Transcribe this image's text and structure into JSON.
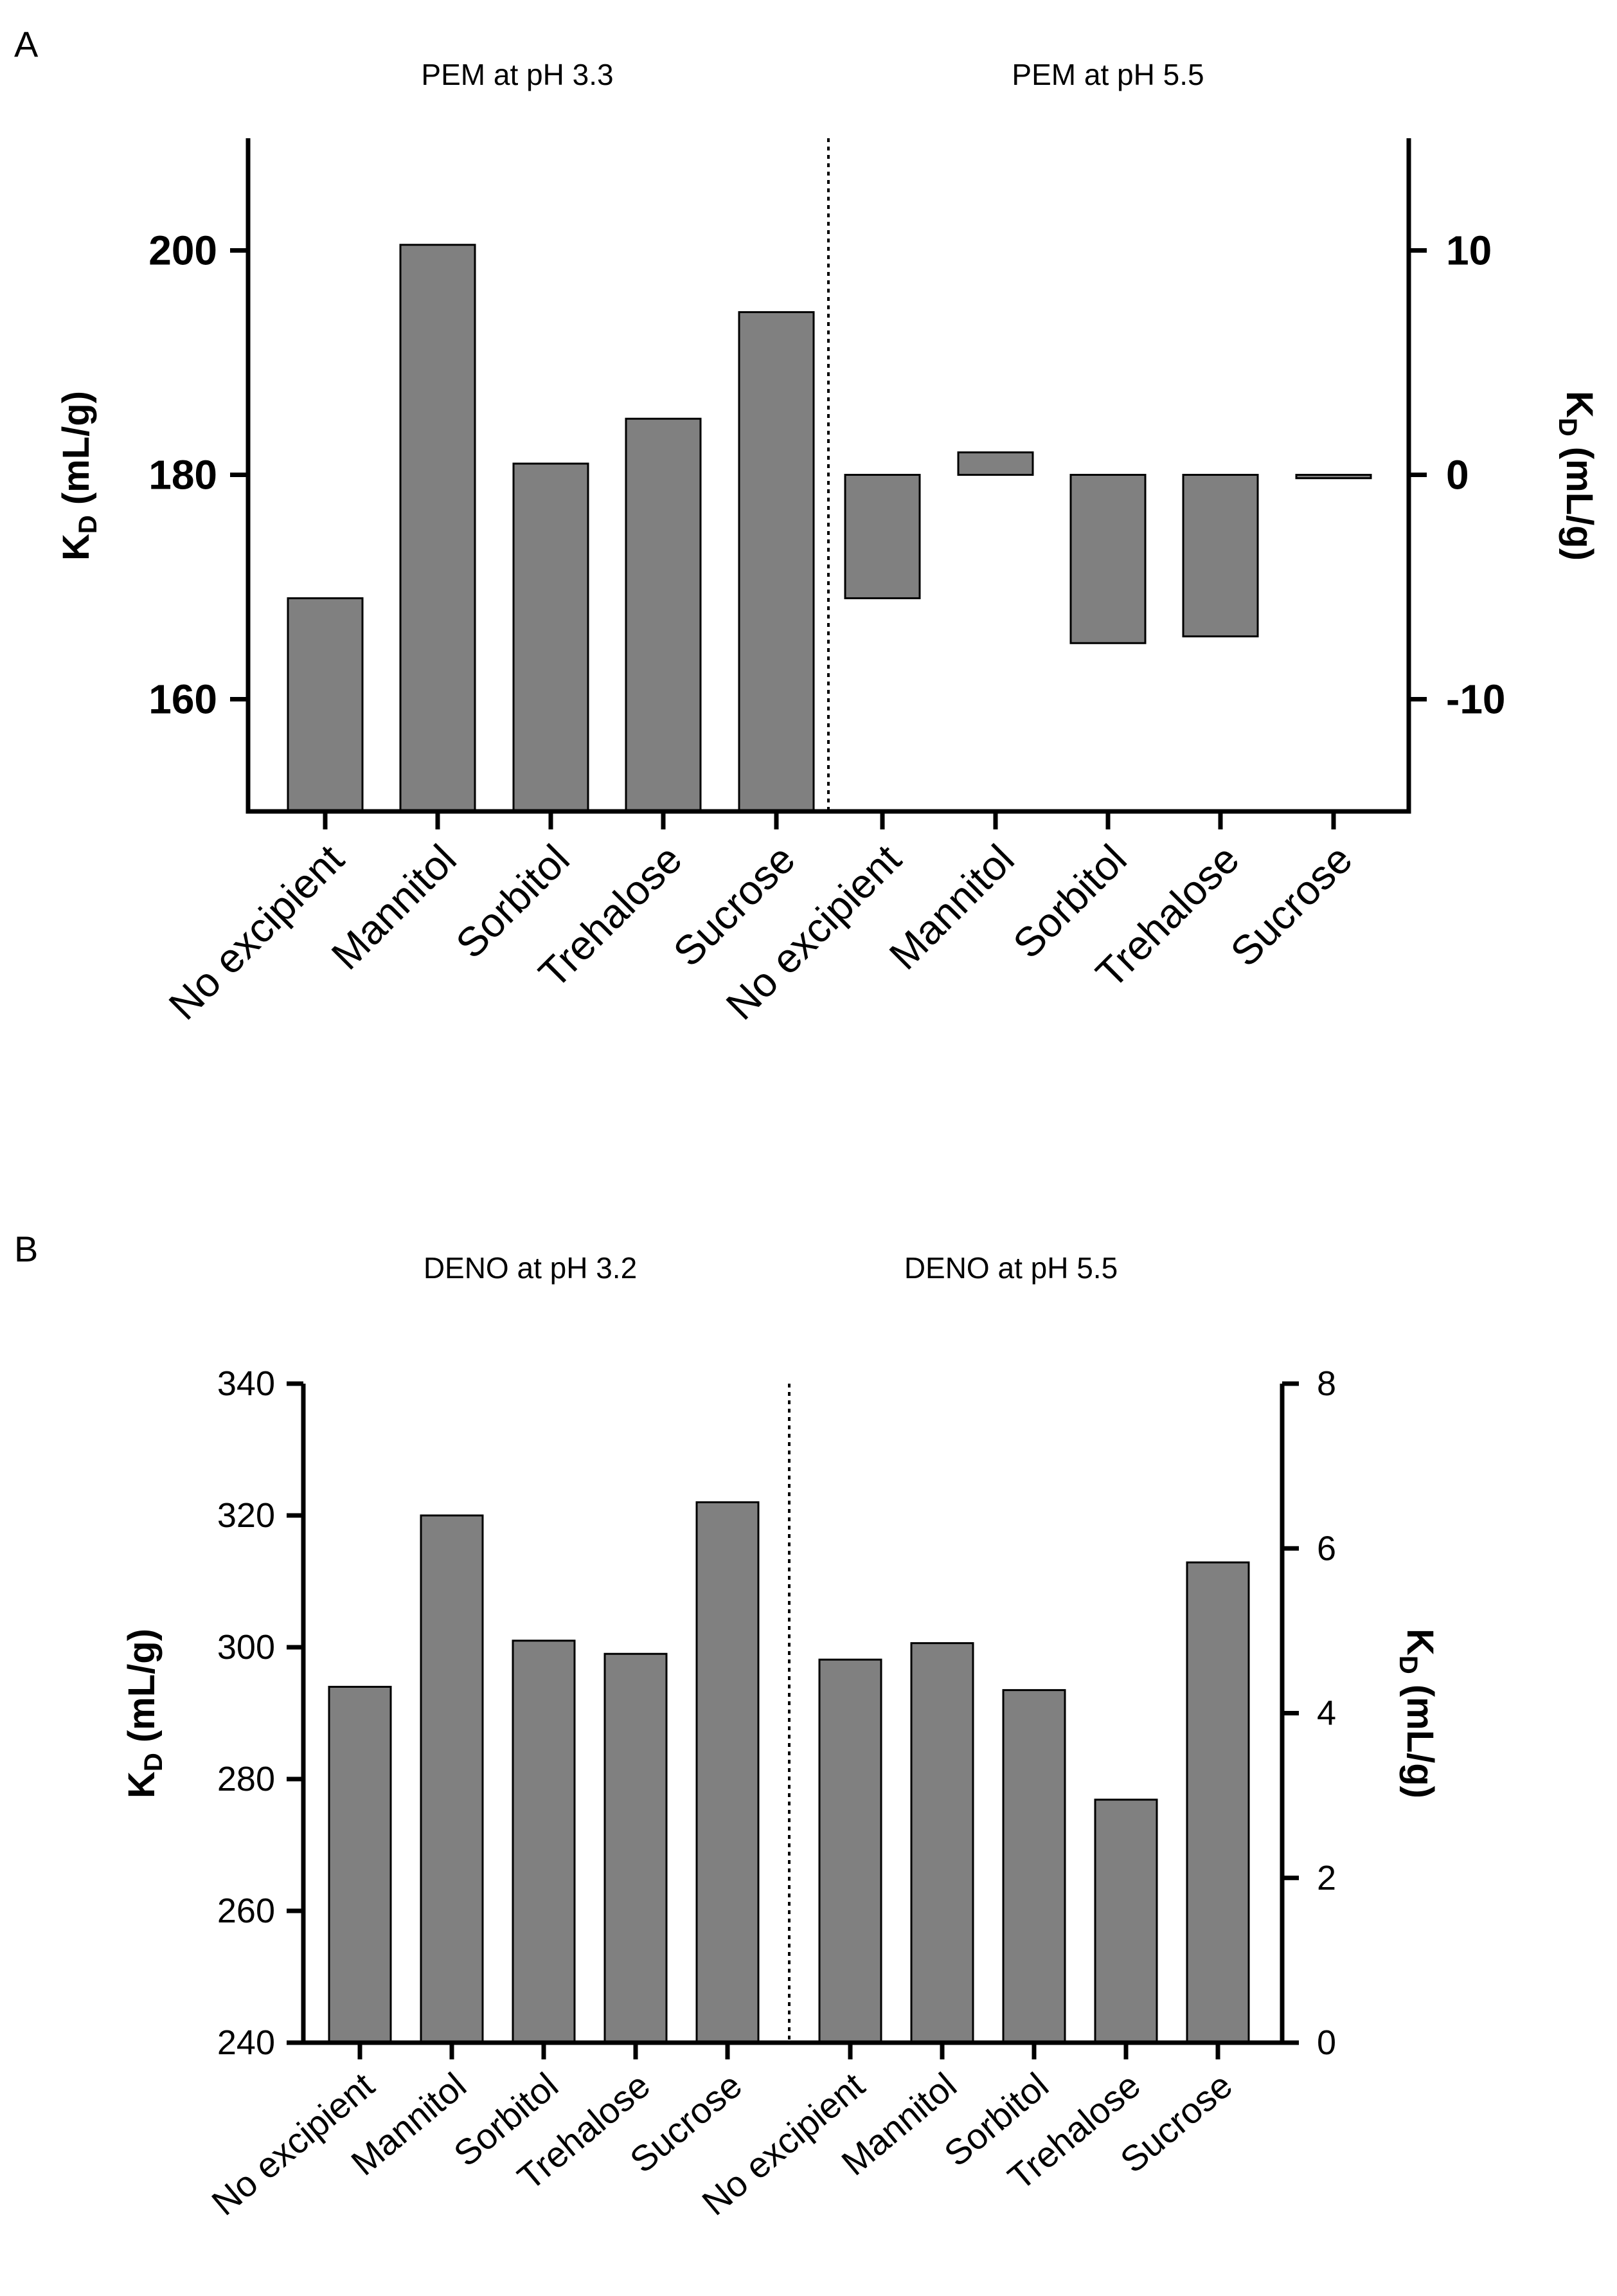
{
  "chart_data": [
    {
      "panel": "A",
      "type": "bar",
      "colors": {
        "bar": "#808080",
        "axis": "#000000"
      },
      "left": {
        "title": "PEM at pH 3.3",
        "categories": [
          "No excipient",
          "Mannitol",
          "Sorbitol",
          "Trehalose",
          "Sucrose"
        ],
        "values": [
          169,
          200.5,
          181,
          185,
          194.5
        ],
        "ylabel": "K",
        "ylabel_sub": "D",
        "ylabel_unit": " (mL/g)",
        "ylim": [
          150,
          210
        ],
        "yticks": [
          160,
          180,
          200
        ]
      },
      "right": {
        "title": "PEM at pH 5.5",
        "categories": [
          "No excipient",
          "Mannitol",
          "Sorbitol",
          "Trehalose",
          "Sucrose"
        ],
        "values": [
          -5.5,
          1.0,
          -7.5,
          -7.2,
          -0.15
        ],
        "ylabel": "K",
        "ylabel_sub": "D",
        "ylabel_unit": " (mL/g)",
        "ylim": [
          -15,
          15
        ],
        "yticks": [
          -10,
          0,
          10
        ]
      }
    },
    {
      "panel": "B",
      "type": "bar",
      "colors": {
        "bar": "#808080",
        "axis": "#000000"
      },
      "left": {
        "title": "DENO at pH 3.2",
        "categories": [
          "No excipient",
          "Mannitol",
          "Sorbitol",
          "Trehalose",
          "Sucrose"
        ],
        "values": [
          294,
          320,
          301,
          299,
          322
        ],
        "ylabel": "K",
        "ylabel_sub": "D",
        "ylabel_unit": " (mL/g)",
        "ylim": [
          240,
          340
        ],
        "yticks": [
          240,
          260,
          280,
          300,
          320,
          340
        ]
      },
      "right": {
        "title": "DENO at pH 5.5",
        "categories": [
          "No excipient",
          "Mannitol",
          "Sorbitol",
          "Trehalose",
          "Sucrose"
        ],
        "values": [
          4.65,
          4.85,
          4.28,
          2.95,
          5.83
        ],
        "ylabel": "K",
        "ylabel_sub": "D",
        "ylabel_unit": " (mL/g)",
        "ylim": [
          0,
          8
        ],
        "yticks": [
          0,
          2,
          4,
          6,
          8
        ]
      }
    }
  ]
}
